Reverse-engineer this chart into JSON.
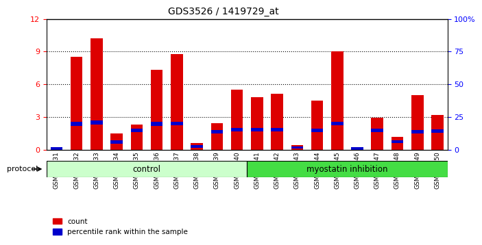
{
  "title": "GDS3526 / 1419729_at",
  "samples": [
    "GSM344631",
    "GSM344632",
    "GSM344633",
    "GSM344634",
    "GSM344635",
    "GSM344636",
    "GSM344637",
    "GSM344638",
    "GSM344639",
    "GSM344640",
    "GSM344641",
    "GSM344642",
    "GSM344643",
    "GSM344644",
    "GSM344645",
    "GSM344646",
    "GSM344647",
    "GSM344648",
    "GSM344649",
    "GSM344650"
  ],
  "count_values": [
    0.05,
    8.5,
    10.2,
    1.5,
    2.3,
    7.3,
    8.8,
    0.6,
    2.4,
    5.5,
    4.8,
    5.1,
    0.4,
    4.5,
    9.0,
    0.1,
    2.9,
    1.2,
    5.0,
    3.2
  ],
  "percentile_values": [
    0.25,
    0.35,
    0.35,
    0.3,
    0.3,
    0.35,
    0.32,
    0.28,
    0.3,
    0.3,
    0.28,
    0.3,
    0.22,
    0.3,
    0.32,
    0.22,
    0.3,
    0.28,
    0.3,
    0.3
  ],
  "percentile_start": [
    0.0,
    2.2,
    2.3,
    0.55,
    1.6,
    2.2,
    2.25,
    0.15,
    1.5,
    1.7,
    1.7,
    1.7,
    0.1,
    1.6,
    2.25,
    0.0,
    1.6,
    0.6,
    1.5,
    1.55
  ],
  "ylim": [
    0,
    12
  ],
  "yticks": [
    0,
    3,
    6,
    9,
    12
  ],
  "right_yticks": [
    0,
    25,
    50,
    75,
    100
  ],
  "right_ytick_labels": [
    "0",
    "25",
    "50",
    "75",
    "100%"
  ],
  "bar_color_red": "#dd0000",
  "bar_color_blue": "#0000cc",
  "control_color": "#ccffcc",
  "myostatin_color": "#44dd44",
  "control_label": "control",
  "myostatin_label": "myostatin inhibition",
  "protocol_label": "protocol",
  "legend_count": "count",
  "legend_percentile": "percentile rank within the sample",
  "n_control": 10,
  "background_color": "#e8e8e8",
  "plot_bg": "#ffffff"
}
